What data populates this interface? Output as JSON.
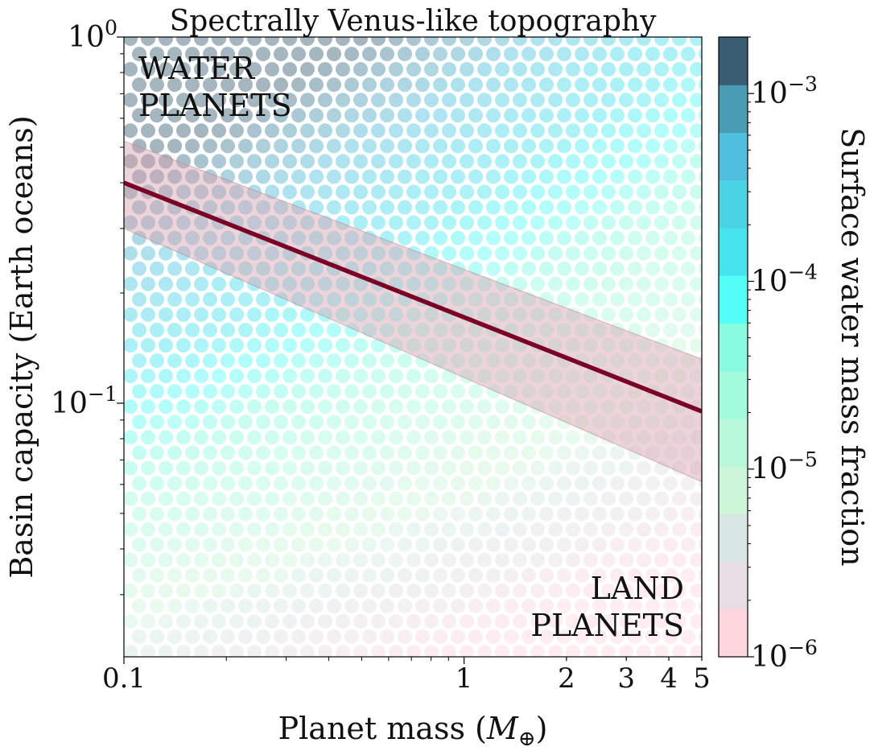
{
  "chart_data": {
    "type": "scatter",
    "title": "Spectrally Venus-like topography",
    "xlabel": "Planet mass (M⊕)",
    "ylabel": "Basin capacity (Earth oceans)",
    "x_scale": "log",
    "y_scale": "log",
    "xlim": [
      0.1,
      5
    ],
    "ylim": [
      0.0203,
      1
    ],
    "x_ticks": [
      {
        "value": 0.1,
        "label": "0.1"
      },
      {
        "value": 1,
        "label": "1"
      },
      {
        "value": 2,
        "label": "2"
      },
      {
        "value": 3,
        "label": "3"
      },
      {
        "value": 4,
        "label": "4"
      },
      {
        "value": 5,
        "label": "5"
      }
    ],
    "y_ticks": [
      {
        "value": 0.1,
        "base": "10",
        "exp": "−1"
      },
      {
        "value": 1,
        "base": "10",
        "exp": "0"
      }
    ],
    "annotations": [
      {
        "lines": [
          "WATER",
          "PLANETS"
        ],
        "placement": "top-left"
      },
      {
        "lines": [
          "LAND",
          "PLANETS"
        ],
        "placement": "bottom-right"
      }
    ],
    "series": [
      {
        "x": [
          0.1,
          5
        ],
        "y": [
          0.4,
          0.095
        ],
        "band_upper": [
          0.52,
          0.132
        ],
        "band_lower": [
          0.3,
          0.061
        ],
        "color": "#7a0026",
        "band_color": "#d8a0b0"
      }
    ],
    "scatter_grid": {
      "x_range": [
        0.1,
        5
      ],
      "y_range": [
        0.0203,
        1
      ],
      "marker": "circle",
      "alpha": 0.45,
      "color_value": "surface water mass fraction"
    },
    "colorbar": {
      "label": "Surface water mass fraction",
      "scale": "log",
      "range": [
        1e-06,
        0.002
      ],
      "ticks": [
        {
          "value": 1e-06,
          "base": "10",
          "exp": "−6"
        },
        {
          "value": 1e-05,
          "base": "10",
          "exp": "−5"
        },
        {
          "value": 0.0001,
          "base": "10",
          "exp": "−4"
        },
        {
          "value": 0.001,
          "base": "10",
          "exp": "−3"
        }
      ],
      "colors": [
        "#ffd6de",
        "#e8dde3",
        "#d6e6e2",
        "#cdf5d8",
        "#b8f8da",
        "#a2fbdd",
        "#86fbe0",
        "#52fdf5",
        "#47e3ee",
        "#49d4e6",
        "#4ec0de",
        "#4a9bb4",
        "#395d72"
      ]
    }
  }
}
